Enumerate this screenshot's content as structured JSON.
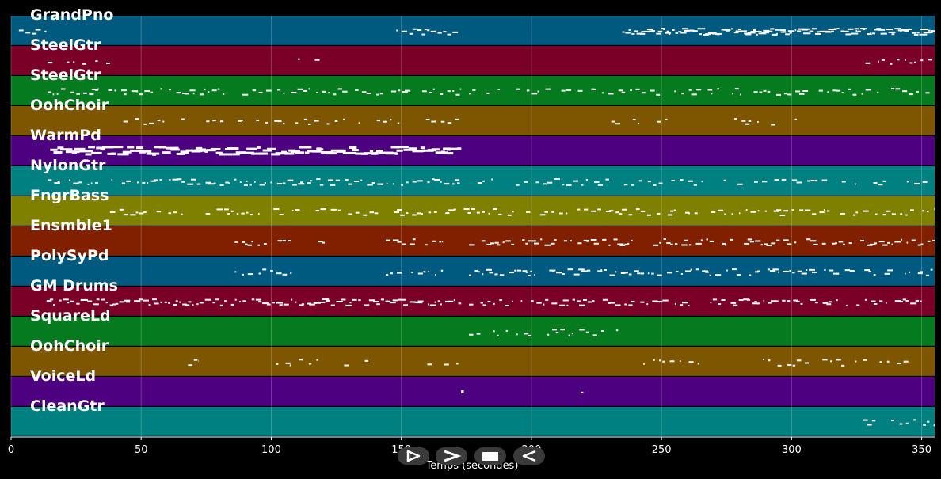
{
  "window": {
    "background": "#000000"
  },
  "chart_data": {
    "type": "piano-roll",
    "xlabel": "Temps (secondes)",
    "xlim": [
      0,
      355
    ],
    "xticks": [
      0,
      50,
      100,
      150,
      200,
      250,
      300,
      350
    ],
    "grid": true,
    "tracks": [
      {
        "name": "GrandPno",
        "color": "#005a80",
        "segments": [
          [
            3,
            14
          ],
          [
            144,
            173
          ],
          [
            234,
            355
          ]
        ],
        "density": [
          0.6,
          0.5,
          0.9
        ]
      },
      {
        "name": "SteelGtr",
        "color": "#7a0028",
        "segments": [
          [
            14,
            38
          ],
          [
            108,
            120
          ],
          [
            325,
            355
          ]
        ],
        "density": [
          0.3,
          0.3,
          0.3
        ]
      },
      {
        "name": "SteelGtr",
        "color": "#057a1e",
        "segments": [
          [
            14,
            173
          ],
          [
            176,
            355
          ]
        ],
        "density": [
          0.5,
          0.4
        ]
      },
      {
        "name": "OohChoir",
        "color": "#7e5500",
        "segments": [
          [
            40,
            173
          ],
          [
            231,
            255
          ],
          [
            278,
            302
          ]
        ],
        "density": [
          0.3,
          0.3,
          0.3
        ]
      },
      {
        "name": "WarmPd",
        "color": "#4d0080",
        "segments": [
          [
            15,
            173
          ]
        ],
        "density": [
          1.0
        ]
      },
      {
        "name": "NylonGtr",
        "color": "#008080",
        "segments": [
          [
            14,
            173
          ],
          [
            176,
            355
          ]
        ],
        "density": [
          0.6,
          0.4
        ]
      },
      {
        "name": "FngrBass",
        "color": "#808000",
        "segments": [
          [
            38,
            173
          ],
          [
            174,
            355
          ]
        ],
        "density": [
          0.5,
          0.5
        ]
      },
      {
        "name": "Ensmble1",
        "color": "#802000",
        "segments": [
          [
            86,
            108
          ],
          [
            118,
            123
          ],
          [
            144,
            166
          ],
          [
            176,
            355
          ]
        ],
        "density": [
          0.5,
          0.3,
          0.5,
          0.6
        ]
      },
      {
        "name": "PolySyPd",
        "color": "#005a80",
        "segments": [
          [
            86,
            108
          ],
          [
            144,
            166
          ],
          [
            176,
            355
          ]
        ],
        "density": [
          0.5,
          0.5,
          0.6
        ]
      },
      {
        "name": "GM Drums",
        "color": "#7a0028",
        "segments": [
          [
            10,
            173
          ],
          [
            176,
            350
          ]
        ],
        "density": [
          0.7,
          0.6
        ]
      },
      {
        "name": "SquareLd",
        "color": "#057a1e",
        "segments": [
          [
            176,
            234
          ]
        ],
        "density": [
          0.4
        ]
      },
      {
        "name": "OohChoir",
        "color": "#7e5500",
        "segments": [
          [
            68,
            72
          ],
          [
            102,
            118
          ],
          [
            128,
            138
          ],
          [
            160,
            173
          ],
          [
            243,
            270
          ],
          [
            289,
            345
          ]
        ],
        "density": [
          0.3,
          0.3,
          0.3,
          0.3,
          0.3,
          0.3
        ]
      },
      {
        "name": "VoiceLd",
        "color": "#4d0080",
        "segments": [
          [
            173,
            174
          ],
          [
            219,
            221
          ]
        ],
        "density": [
          0.2,
          0.2
        ]
      },
      {
        "name": "CleanGtr",
        "color": "#008080",
        "segments": [
          [
            325,
            355
          ]
        ],
        "density": [
          0.3
        ]
      }
    ]
  },
  "controls": {
    "play_label": "Play",
    "forward_label": "Next",
    "stop_label": "Stop",
    "rewind_label": "Rewind"
  }
}
